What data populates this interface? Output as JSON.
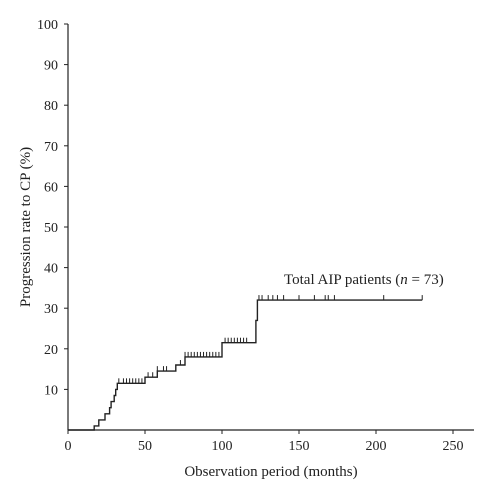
{
  "chart_data": {
    "type": "line",
    "subtype": "kaplan-meier-cumulative-incidence",
    "title": "",
    "xlabel": "Observation period (months)",
    "ylabel": "Progression rate to CP (%)",
    "xlim": [
      0,
      250
    ],
    "ylim": [
      0,
      100
    ],
    "xticks": [
      0,
      50,
      100,
      150,
      200,
      250
    ],
    "yticks": [
      10,
      20,
      30,
      40,
      50,
      60,
      70,
      80,
      90,
      100
    ],
    "grid": false,
    "annotation": {
      "prefix": "Total AIP patients (",
      "italic": "n",
      "suffix": " = 73)"
    },
    "series": [
      {
        "color": "#222222",
        "step_points": [
          [
            0,
            0
          ],
          [
            17,
            0
          ],
          [
            17,
            1
          ],
          [
            20,
            1
          ],
          [
            20,
            2.5
          ],
          [
            24,
            2.5
          ],
          [
            24,
            4
          ],
          [
            27,
            4
          ],
          [
            27,
            5.5
          ],
          [
            28,
            5.5
          ],
          [
            28,
            7
          ],
          [
            30,
            7
          ],
          [
            30,
            8.5
          ],
          [
            31,
            8.5
          ],
          [
            31,
            10
          ],
          [
            32,
            10
          ],
          [
            32,
            11.5
          ],
          [
            50,
            11.5
          ],
          [
            50,
            13
          ],
          [
            58,
            13
          ],
          [
            58,
            14.5
          ],
          [
            70,
            14.5
          ],
          [
            70,
            16
          ],
          [
            76,
            16
          ],
          [
            76,
            18
          ],
          [
            100,
            18
          ],
          [
            100,
            21.5
          ],
          [
            122,
            21.5
          ],
          [
            122,
            27
          ],
          [
            123,
            27
          ],
          [
            123,
            32
          ],
          [
            230,
            32
          ]
        ],
        "censor_times": [
          33,
          36,
          38,
          40,
          42,
          44,
          46,
          48,
          52,
          55,
          58,
          62,
          64,
          73,
          76,
          78,
          80,
          82,
          84,
          86,
          88,
          90,
          92,
          94,
          96,
          98,
          102,
          104,
          106,
          108,
          110,
          112,
          114,
          116,
          124,
          126,
          130,
          133,
          136,
          140,
          150,
          160,
          167,
          169,
          173,
          205,
          230
        ]
      }
    ]
  }
}
